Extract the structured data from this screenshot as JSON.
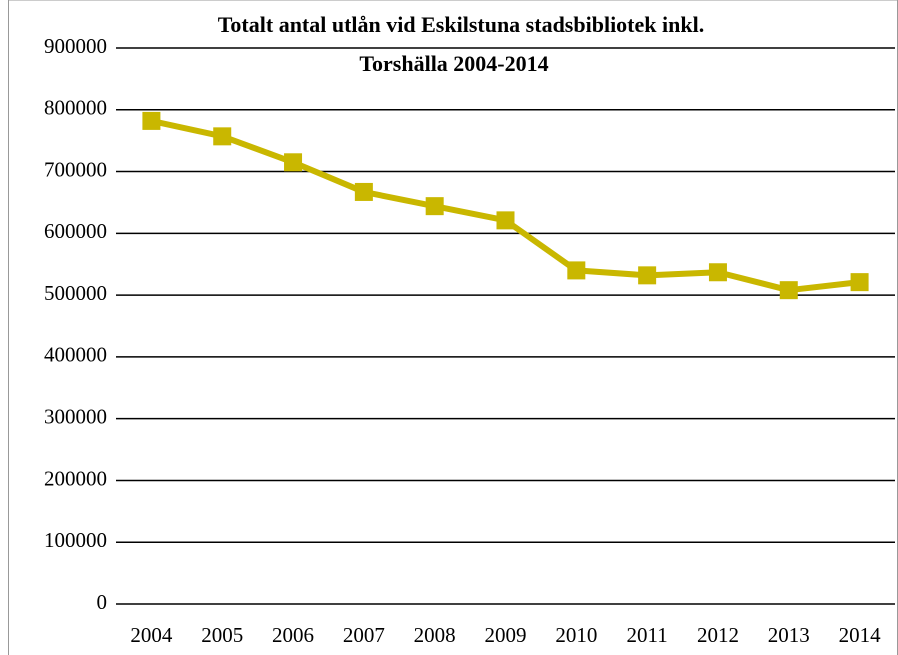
{
  "chart_data": {
    "type": "line",
    "title": [
      "Totalt antal utlån vid Eskilstuna stadsbibliotek inkl.",
      "Torshälla 2004-2014"
    ],
    "categories": [
      "2004",
      "2005",
      "2006",
      "2007",
      "2008",
      "2009",
      "2010",
      "2011",
      "2012",
      "2013",
      "2014"
    ],
    "series": [
      {
        "color": "#c9b700",
        "values": [
          782000,
          757000,
          715000,
          667000,
          644000,
          621000,
          540000,
          532000,
          537000,
          508000,
          521000
        ]
      }
    ],
    "ylim": [
      0,
      900000
    ],
    "yticks": [
      0,
      100000,
      200000,
      300000,
      400000,
      500000,
      600000,
      700000,
      800000,
      900000
    ],
    "grid": true
  }
}
